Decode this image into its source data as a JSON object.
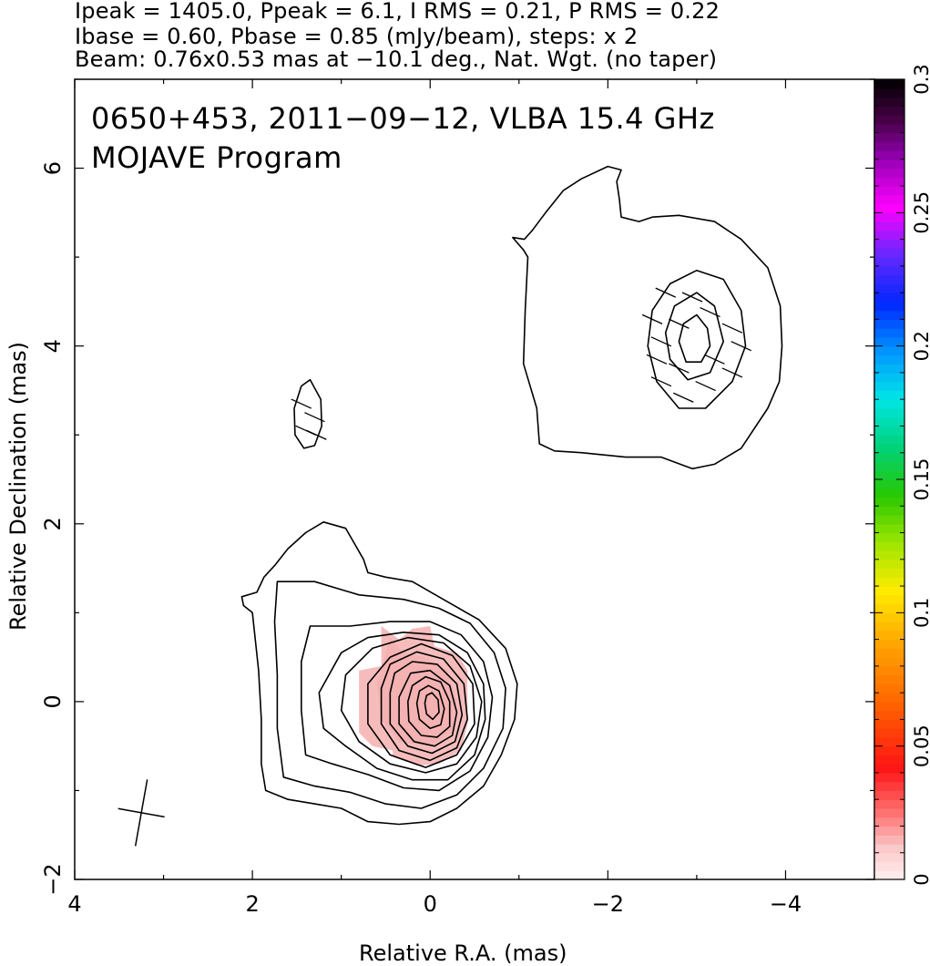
{
  "header": {
    "line1": "Ipeak = 1405.0, Ppeak = 6.1, I RMS = 0.21, P RMS = 0.22",
    "line2": "Ibase = 0.60, Pbase = 0.85 (mJy/beam), steps: x 2",
    "line3": "Beam: 0.76x0.53 mas at −10.1 deg., Nat. Wgt. (no taper)"
  },
  "title": {
    "line1": "0650+453, 2011−09−12, VLBA 15.4 GHz",
    "line2": "MOJAVE Program"
  },
  "chart_data": {
    "type": "contour",
    "xlabel": "Relative R.A. (mas)",
    "ylabel": "Relative Declination (mas)",
    "xlim": [
      4,
      -5
    ],
    "ylim": [
      -2,
      7
    ],
    "x_ticks": [
      {
        "v": 4,
        "label": "4"
      },
      {
        "v": 2,
        "label": "2"
      },
      {
        "v": 0,
        "label": "0"
      },
      {
        "v": -2,
        "label": "−2"
      },
      {
        "v": -4,
        "label": "−4"
      }
    ],
    "y_ticks": [
      {
        "v": -2,
        "label": "−2"
      },
      {
        "v": 0,
        "label": "0"
      },
      {
        "v": 2,
        "label": "2"
      },
      {
        "v": 4,
        "label": "4"
      },
      {
        "v": 6,
        "label": "6"
      }
    ],
    "colorbar": {
      "range": [
        0,
        0.3
      ],
      "ticks": [
        {
          "v": 0,
          "label": "0"
        },
        {
          "v": 0.05,
          "label": "0.05"
        },
        {
          "v": 0.1,
          "label": "0.1"
        },
        {
          "v": 0.15,
          "label": "0.15"
        },
        {
          "v": 0.2,
          "label": "0.2"
        },
        {
          "v": 0.25,
          "label": "0.25"
        },
        {
          "v": 0.3,
          "label": "0.3"
        }
      ]
    },
    "core": {
      "center": [
        0.0,
        0.0
      ],
      "contours": [
        [
          [
            1.95,
            1.23
          ],
          [
            2.12,
            1.18
          ],
          [
            2.1,
            1.08
          ],
          [
            2.0,
            1.0
          ],
          [
            1.93,
            0.35
          ],
          [
            1.9,
            -0.2
          ],
          [
            1.9,
            -0.7
          ],
          [
            1.85,
            -1.0
          ],
          [
            1.6,
            -1.1
          ],
          [
            1.3,
            -1.15
          ],
          [
            1.0,
            -1.2
          ],
          [
            0.7,
            -1.35
          ],
          [
            0.35,
            -1.38
          ],
          [
            0.0,
            -1.35
          ],
          [
            -0.3,
            -1.2
          ],
          [
            -0.6,
            -0.95
          ],
          [
            -0.8,
            -0.6
          ],
          [
            -0.95,
            -0.2
          ],
          [
            -0.98,
            0.2
          ],
          [
            -0.85,
            0.6
          ],
          [
            -0.55,
            0.92
          ],
          [
            -0.2,
            1.12
          ],
          [
            0.2,
            1.35
          ],
          [
            0.5,
            1.4
          ],
          [
            0.7,
            1.45
          ],
          [
            0.75,
            1.6
          ],
          [
            0.95,
            1.95
          ],
          [
            1.2,
            2.02
          ],
          [
            1.4,
            1.9
          ],
          [
            1.6,
            1.72
          ],
          [
            1.75,
            1.53
          ],
          [
            1.87,
            1.4
          ],
          [
            1.95,
            1.23
          ]
        ],
        [
          [
            1.72,
            1.35
          ],
          [
            1.75,
            0.9
          ],
          [
            1.72,
            0.3
          ],
          [
            1.72,
            -0.3
          ],
          [
            1.65,
            -0.85
          ],
          [
            1.3,
            -0.95
          ],
          [
            0.9,
            -1.02
          ],
          [
            0.5,
            -1.15
          ],
          [
            0.1,
            -1.2
          ],
          [
            -0.3,
            -1.05
          ],
          [
            -0.6,
            -0.75
          ],
          [
            -0.82,
            -0.3
          ],
          [
            -0.85,
            0.15
          ],
          [
            -0.72,
            0.55
          ],
          [
            -0.45,
            0.88
          ],
          [
            -0.1,
            1.05
          ],
          [
            0.3,
            1.15
          ],
          [
            0.8,
            1.2
          ],
          [
            1.3,
            1.35
          ],
          [
            1.72,
            1.35
          ]
        ],
        [
          [
            1.35,
            0.85
          ],
          [
            1.45,
            0.45
          ],
          [
            1.45,
            -0.1
          ],
          [
            1.4,
            -0.6
          ],
          [
            1.1,
            -0.7
          ],
          [
            0.7,
            -0.82
          ],
          [
            0.3,
            -0.97
          ],
          [
            -0.1,
            -1.0
          ],
          [
            -0.45,
            -0.78
          ],
          [
            -0.65,
            -0.4
          ],
          [
            -0.7,
            0.05
          ],
          [
            -0.6,
            0.45
          ],
          [
            -0.35,
            0.75
          ],
          [
            0.0,
            0.9
          ],
          [
            0.45,
            0.9
          ],
          [
            0.9,
            0.85
          ],
          [
            1.35,
            0.85
          ]
        ],
        [
          [
            1.0,
            0.55
          ],
          [
            1.25,
            0.1
          ],
          [
            1.2,
            -0.3
          ],
          [
            0.95,
            -0.5
          ],
          [
            0.6,
            -0.75
          ],
          [
            0.2,
            -0.88
          ],
          [
            -0.2,
            -0.88
          ],
          [
            -0.5,
            -0.6
          ],
          [
            -0.62,
            -0.2
          ],
          [
            -0.6,
            0.2
          ],
          [
            -0.42,
            0.55
          ],
          [
            -0.1,
            0.75
          ],
          [
            0.3,
            0.78
          ],
          [
            0.7,
            0.72
          ],
          [
            1.0,
            0.55
          ]
        ],
        [
          [
            0.65,
            0.6
          ],
          [
            0.95,
            0.3
          ],
          [
            1.0,
            -0.1
          ],
          [
            0.8,
            -0.45
          ],
          [
            0.45,
            -0.7
          ],
          [
            0.05,
            -0.8
          ],
          [
            -0.3,
            -0.7
          ],
          [
            -0.52,
            -0.4
          ],
          [
            -0.58,
            0.0
          ],
          [
            -0.45,
            0.4
          ],
          [
            -0.15,
            0.66
          ],
          [
            0.25,
            0.72
          ],
          [
            0.65,
            0.6
          ]
        ],
        [
          [
            0.7,
            0.2
          ],
          [
            0.7,
            -0.25
          ],
          [
            0.45,
            -0.6
          ],
          [
            0.05,
            -0.74
          ],
          [
            -0.3,
            -0.6
          ],
          [
            -0.5,
            -0.25
          ],
          [
            -0.48,
            0.2
          ],
          [
            -0.25,
            0.52
          ],
          [
            0.1,
            0.65
          ],
          [
            0.45,
            0.5
          ],
          [
            0.7,
            0.2
          ]
        ],
        [
          [
            0.55,
            0.15
          ],
          [
            0.55,
            -0.25
          ],
          [
            0.35,
            -0.55
          ],
          [
            0.0,
            -0.66
          ],
          [
            -0.3,
            -0.52
          ],
          [
            -0.42,
            -0.2
          ],
          [
            -0.38,
            0.2
          ],
          [
            -0.15,
            0.48
          ],
          [
            0.15,
            0.56
          ],
          [
            0.45,
            0.42
          ],
          [
            0.55,
            0.15
          ]
        ],
        [
          [
            0.45,
            0.1
          ],
          [
            0.45,
            -0.25
          ],
          [
            0.25,
            -0.5
          ],
          [
            -0.02,
            -0.58
          ],
          [
            -0.28,
            -0.45
          ],
          [
            -0.36,
            -0.15
          ],
          [
            -0.3,
            0.2
          ],
          [
            -0.08,
            0.42
          ],
          [
            0.2,
            0.45
          ],
          [
            0.4,
            0.32
          ],
          [
            0.45,
            0.1
          ]
        ],
        [
          [
            0.35,
            0.05
          ],
          [
            0.35,
            -0.25
          ],
          [
            0.18,
            -0.45
          ],
          [
            -0.05,
            -0.5
          ],
          [
            -0.25,
            -0.38
          ],
          [
            -0.3,
            -0.12
          ],
          [
            -0.22,
            0.18
          ],
          [
            0.0,
            0.35
          ],
          [
            0.22,
            0.32
          ],
          [
            0.35,
            0.05
          ]
        ],
        [
          [
            0.25,
            0.0
          ],
          [
            0.24,
            -0.22
          ],
          [
            0.1,
            -0.38
          ],
          [
            -0.08,
            -0.4
          ],
          [
            -0.22,
            -0.28
          ],
          [
            -0.22,
            0.0
          ],
          [
            -0.12,
            0.22
          ],
          [
            0.05,
            0.28
          ],
          [
            0.2,
            0.18
          ],
          [
            0.25,
            0.0
          ]
        ],
        [
          [
            0.15,
            -0.02
          ],
          [
            0.12,
            -0.2
          ],
          [
            0.0,
            -0.3
          ],
          [
            -0.12,
            -0.26
          ],
          [
            -0.16,
            -0.08
          ],
          [
            -0.1,
            0.12
          ],
          [
            0.02,
            0.18
          ],
          [
            0.12,
            0.12
          ],
          [
            0.15,
            -0.02
          ]
        ],
        [
          [
            0.06,
            -0.02
          ],
          [
            0.04,
            -0.14
          ],
          [
            -0.03,
            -0.2
          ],
          [
            -0.1,
            -0.12
          ],
          [
            -0.09,
            0.02
          ],
          [
            -0.02,
            0.1
          ],
          [
            0.04,
            0.07
          ],
          [
            0.06,
            -0.02
          ]
        ]
      ]
    },
    "jet": {
      "center": [
        -3.0,
        4.05
      ],
      "contours": [
        [
          [
            -1.06,
            5.2
          ],
          [
            -0.93,
            5.22
          ],
          [
            -1.05,
            5.08
          ],
          [
            -1.1,
            5.0
          ],
          [
            -1.07,
            4.4
          ],
          [
            -1.05,
            3.8
          ],
          [
            -1.2,
            3.3
          ],
          [
            -1.23,
            2.9
          ],
          [
            -1.4,
            2.82
          ],
          [
            -1.7,
            2.8
          ],
          [
            -2.2,
            2.75
          ],
          [
            -2.6,
            2.75
          ],
          [
            -2.95,
            2.62
          ],
          [
            -3.2,
            2.67
          ],
          [
            -3.5,
            2.85
          ],
          [
            -3.8,
            3.3
          ],
          [
            -3.93,
            3.6
          ],
          [
            -3.96,
            4.0
          ],
          [
            -3.94,
            4.45
          ],
          [
            -3.8,
            4.88
          ],
          [
            -3.5,
            5.2
          ],
          [
            -3.2,
            5.4
          ],
          [
            -2.8,
            5.47
          ],
          [
            -2.5,
            5.45
          ],
          [
            -2.35,
            5.4
          ],
          [
            -2.15,
            5.45
          ],
          [
            -2.13,
            5.65
          ],
          [
            -2.1,
            5.85
          ],
          [
            -2.15,
            5.98
          ],
          [
            -2.0,
            6.02
          ],
          [
            -1.7,
            5.88
          ],
          [
            -1.5,
            5.75
          ],
          [
            -1.3,
            5.5
          ],
          [
            -1.15,
            5.3
          ],
          [
            -1.06,
            5.2
          ]
        ],
        [
          [
            -3.0,
            4.85
          ],
          [
            -3.3,
            4.75
          ],
          [
            -3.5,
            4.4
          ],
          [
            -3.55,
            4.0
          ],
          [
            -3.4,
            3.6
          ],
          [
            -3.1,
            3.3
          ],
          [
            -2.8,
            3.3
          ],
          [
            -2.55,
            3.6
          ],
          [
            -2.45,
            4.0
          ],
          [
            -2.5,
            4.4
          ],
          [
            -2.7,
            4.7
          ],
          [
            -3.0,
            4.85
          ]
        ],
        [
          [
            -3.0,
            4.6
          ],
          [
            -3.2,
            4.45
          ],
          [
            -3.3,
            4.05
          ],
          [
            -3.15,
            3.7
          ],
          [
            -2.9,
            3.62
          ],
          [
            -2.7,
            3.85
          ],
          [
            -2.65,
            4.15
          ],
          [
            -2.75,
            4.45
          ],
          [
            -3.0,
            4.6
          ]
        ],
        [
          [
            -3.0,
            4.35
          ],
          [
            -3.12,
            4.2
          ],
          [
            -3.15,
            4.0
          ],
          [
            -3.05,
            3.82
          ],
          [
            -2.88,
            3.82
          ],
          [
            -2.8,
            4.05
          ],
          [
            -2.85,
            4.25
          ],
          [
            -3.0,
            4.35
          ]
        ]
      ]
    },
    "blob": {
      "center": [
        1.35,
        3.25
      ],
      "contours": [
        [
          [
            1.35,
            3.62
          ],
          [
            1.23,
            3.4
          ],
          [
            1.22,
            3.1
          ],
          [
            1.3,
            2.88
          ],
          [
            1.42,
            2.85
          ],
          [
            1.52,
            3.0
          ],
          [
            1.53,
            3.3
          ],
          [
            1.45,
            3.55
          ],
          [
            1.35,
            3.62
          ]
        ]
      ]
    },
    "pol_vectors": [
      [
        -2.65,
        4.6
      ],
      [
        -2.95,
        4.55
      ],
      [
        -3.15,
        4.38
      ],
      [
        -2.5,
        4.3
      ],
      [
        -2.8,
        4.25
      ],
      [
        -3.4,
        4.2
      ],
      [
        -2.6,
        4.05
      ],
      [
        -3.5,
        4.0
      ],
      [
        -2.55,
        3.85
      ],
      [
        -3.2,
        3.85
      ],
      [
        -2.8,
        3.75
      ],
      [
        -3.4,
        3.7
      ],
      [
        -2.6,
        3.6
      ],
      [
        -3.1,
        3.55
      ],
      [
        -2.85,
        3.42
      ],
      [
        1.45,
        3.35
      ],
      [
        1.3,
        3.2
      ],
      [
        1.4,
        3.05
      ],
      [
        1.28,
        3.0
      ]
    ],
    "beam": {
      "major": 0.76,
      "minor": 0.53,
      "pa_deg": -10.1,
      "center": [
        3.25,
        -1.25
      ]
    }
  }
}
